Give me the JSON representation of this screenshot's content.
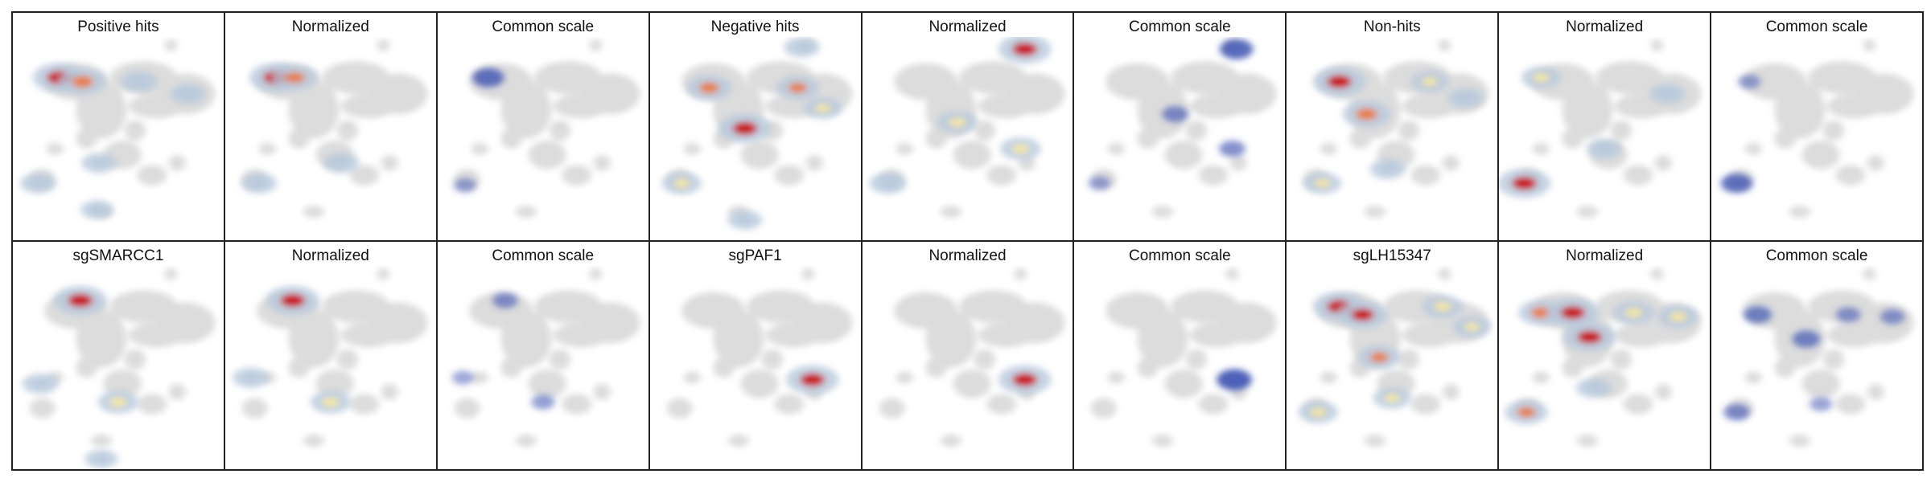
{
  "figure": {
    "rows": [
      [
        "Positive hits",
        "Normalized",
        "Common scale",
        "Negative hits",
        "Normalized",
        "Common scale",
        "Non-hits",
        "Normalized",
        "Common scale"
      ],
      [
        "sgSMARCC1",
        "Normalized",
        "Common scale",
        "sgPAF1",
        "Normalized",
        "Common scale",
        "sgLH15347",
        "Normalized",
        "Common scale"
      ]
    ]
  },
  "chart_data": {
    "type": "heatmap",
    "description_kind": "UMAP density overlays",
    "colors": {
      "background_cells": "#dcdcdc",
      "density_low": "#b8c8dc",
      "density_mid": "#f4e7a2",
      "density_high": "#c8151b",
      "common_scale": "#3a4fb0"
    },
    "panels": [
      {
        "title": "Positive hits",
        "mode": "density",
        "hotspots": [
          [
            0.22,
            0.2,
            1.0
          ],
          [
            0.33,
            0.22,
            0.8
          ],
          [
            0.6,
            0.22,
            0.35
          ],
          [
            0.83,
            0.28,
            0.3
          ],
          [
            0.41,
            0.62,
            0.3
          ],
          [
            0.12,
            0.72,
            0.3
          ],
          [
            0.4,
            0.85,
            0.2
          ]
        ]
      },
      {
        "title": "Normalized",
        "mode": "density",
        "hotspots": [
          [
            0.24,
            0.2,
            1.0
          ],
          [
            0.33,
            0.2,
            0.7
          ],
          [
            0.55,
            0.62,
            0.3
          ],
          [
            0.16,
            0.72,
            0.3
          ]
        ]
      },
      {
        "title": "Common scale",
        "mode": "common",
        "hotspots": [
          [
            0.24,
            0.2,
            0.8
          ],
          [
            0.13,
            0.73,
            0.3
          ]
        ]
      },
      {
        "title": "Negative hits",
        "mode": "density",
        "hotspots": [
          [
            0.28,
            0.25,
            0.7
          ],
          [
            0.45,
            0.45,
            1.0
          ],
          [
            0.7,
            0.25,
            0.6
          ],
          [
            0.82,
            0.35,
            0.4
          ],
          [
            0.15,
            0.72,
            0.45
          ],
          [
            0.72,
            0.05,
            0.3
          ],
          [
            0.45,
            0.9,
            0.25
          ]
        ]
      },
      {
        "title": "Normalized",
        "mode": "density",
        "hotspots": [
          [
            0.77,
            0.06,
            1.0
          ],
          [
            0.45,
            0.42,
            0.5
          ],
          [
            0.75,
            0.55,
            0.5
          ],
          [
            0.12,
            0.72,
            0.35
          ]
        ]
      },
      {
        "title": "Common scale",
        "mode": "common",
        "hotspots": [
          [
            0.77,
            0.06,
            0.9
          ],
          [
            0.48,
            0.38,
            0.5
          ],
          [
            0.75,
            0.55,
            0.5
          ],
          [
            0.12,
            0.72,
            0.25
          ]
        ]
      },
      {
        "title": "Non-hits",
        "mode": "density",
        "hotspots": [
          [
            0.25,
            0.22,
            1.0
          ],
          [
            0.38,
            0.38,
            0.8
          ],
          [
            0.68,
            0.22,
            0.4
          ],
          [
            0.85,
            0.3,
            0.3
          ],
          [
            0.48,
            0.65,
            0.3
          ],
          [
            0.17,
            0.72,
            0.4
          ]
        ]
      },
      {
        "title": "Normalized",
        "mode": "density",
        "hotspots": [
          [
            0.2,
            0.2,
            0.45
          ],
          [
            0.5,
            0.55,
            0.3
          ],
          [
            0.8,
            0.28,
            0.3
          ],
          [
            0.12,
            0.72,
            1.0
          ]
        ]
      },
      {
        "title": "Common scale",
        "mode": "common",
        "hotspots": [
          [
            0.12,
            0.72,
            0.8
          ],
          [
            0.18,
            0.22,
            0.3
          ]
        ]
      },
      {
        "title": "sgSMARCC1",
        "mode": "density",
        "hotspots": [
          [
            0.32,
            0.17,
            1.0
          ],
          [
            0.13,
            0.58,
            0.3
          ],
          [
            0.5,
            0.67,
            0.5
          ],
          [
            0.42,
            0.95,
            0.2
          ]
        ]
      },
      {
        "title": "Normalized",
        "mode": "density",
        "hotspots": [
          [
            0.32,
            0.17,
            1.0
          ],
          [
            0.12,
            0.55,
            0.3
          ],
          [
            0.5,
            0.67,
            0.5
          ]
        ]
      },
      {
        "title": "Common scale",
        "mode": "common",
        "hotspots": [
          [
            0.32,
            0.17,
            0.45
          ],
          [
            0.12,
            0.55,
            0.25
          ],
          [
            0.5,
            0.67,
            0.35
          ]
        ]
      },
      {
        "title": "sgPAF1",
        "mode": "density",
        "hotspots": [
          [
            0.77,
            0.56,
            1.0
          ]
        ]
      },
      {
        "title": "Normalized",
        "mode": "density",
        "hotspots": [
          [
            0.77,
            0.56,
            1.0
          ]
        ]
      },
      {
        "title": "Common scale",
        "mode": "common",
        "hotspots": [
          [
            0.76,
            0.56,
            1.0
          ]
        ]
      },
      {
        "title": "sgLH15347",
        "mode": "density",
        "hotspots": [
          [
            0.25,
            0.2,
            1.0
          ],
          [
            0.36,
            0.24,
            0.9
          ],
          [
            0.44,
            0.45,
            0.6
          ],
          [
            0.74,
            0.2,
            0.5
          ],
          [
            0.88,
            0.3,
            0.4
          ],
          [
            0.15,
            0.72,
            0.45
          ],
          [
            0.5,
            0.65,
            0.4
          ]
        ]
      },
      {
        "title": "Normalized",
        "mode": "density",
        "hotspots": [
          [
            0.2,
            0.23,
            0.7
          ],
          [
            0.35,
            0.23,
            1.0
          ],
          [
            0.43,
            0.35,
            1.0
          ],
          [
            0.64,
            0.23,
            0.5
          ],
          [
            0.85,
            0.25,
            0.5
          ],
          [
            0.13,
            0.72,
            0.6
          ],
          [
            0.45,
            0.6,
            0.3
          ]
        ]
      },
      {
        "title": "Common scale",
        "mode": "common",
        "hotspots": [
          [
            0.22,
            0.24,
            0.6
          ],
          [
            0.45,
            0.36,
            0.6
          ],
          [
            0.65,
            0.24,
            0.4
          ],
          [
            0.86,
            0.25,
            0.4
          ],
          [
            0.12,
            0.72,
            0.5
          ],
          [
            0.52,
            0.68,
            0.3
          ]
        ]
      }
    ]
  }
}
